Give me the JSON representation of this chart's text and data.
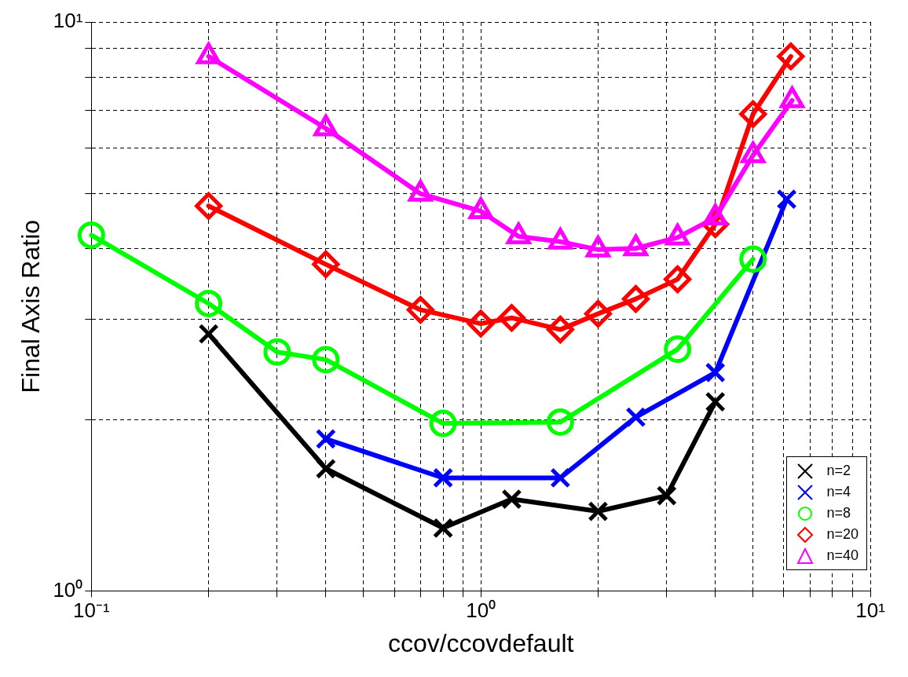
{
  "chart_data": {
    "type": "line",
    "xlabel": "ccov/ccovdefault",
    "ylabel": "Final Axis Ratio",
    "log": "xy",
    "grid": true,
    "legend": "bottom right",
    "line_style": "solid",
    "xlim": [
      0.1,
      10
    ],
    "ylim": [
      1,
      10
    ],
    "xticks": [
      {
        "value": 0.1,
        "label": "10⁻¹"
      },
      {
        "value": 0.2,
        "label": null
      },
      {
        "value": 0.3,
        "label": null
      },
      {
        "value": 0.4,
        "label": null
      },
      {
        "value": 0.5,
        "label": null
      },
      {
        "value": 0.6,
        "label": null
      },
      {
        "value": 0.7,
        "label": null
      },
      {
        "value": 0.8,
        "label": null
      },
      {
        "value": 0.9,
        "label": null
      },
      {
        "value": 1,
        "label": "10⁰"
      },
      {
        "value": 2,
        "label": null
      },
      {
        "value": 3,
        "label": null
      },
      {
        "value": 4,
        "label": null
      },
      {
        "value": 5,
        "label": null
      },
      {
        "value": 6,
        "label": null
      },
      {
        "value": 7,
        "label": null
      },
      {
        "value": 8,
        "label": null
      },
      {
        "value": 9,
        "label": null
      },
      {
        "value": 10,
        "label": "10¹"
      }
    ],
    "yticks": [
      {
        "value": 1,
        "label": "10⁰"
      },
      {
        "value": 2,
        "label": null
      },
      {
        "value": 3,
        "label": null
      },
      {
        "value": 4,
        "label": null
      },
      {
        "value": 5,
        "label": null
      },
      {
        "value": 6,
        "label": null
      },
      {
        "value": 7,
        "label": null
      },
      {
        "value": 8,
        "label": null
      },
      {
        "value": 9,
        "label": null
      },
      {
        "value": 10,
        "label": "10¹"
      }
    ],
    "series": [
      {
        "name": "n=2",
        "color": "#000000",
        "marker": "cross",
        "x": [
          0.2,
          0.4,
          0.8,
          1.2,
          2,
          3,
          4
        ],
        "values": [
          2.83,
          1.64,
          1.29,
          1.45,
          1.38,
          1.47,
          2.15
        ]
      },
      {
        "name": "n=4",
        "color": "#0000ff",
        "marker": "cross",
        "x": [
          0.4,
          0.8,
          1.6,
          2.5,
          4,
          6.1
        ],
        "values": [
          1.85,
          1.58,
          1.58,
          2.02,
          2.42,
          4.88
        ]
      },
      {
        "name": "n=8",
        "color": "#00ff00",
        "marker": "circle",
        "x": [
          0.1,
          0.2,
          0.3,
          0.4,
          0.8,
          1.6,
          3.2,
          5
        ],
        "values": [
          4.22,
          3.2,
          2.63,
          2.55,
          1.97,
          1.98,
          2.66,
          3.83
        ]
      },
      {
        "name": "n=20",
        "color": "#ff0000",
        "marker": "diamond",
        "x": [
          0.2,
          0.4,
          0.7,
          1,
          1.2,
          1.6,
          2,
          2.5,
          3.2,
          4,
          5,
          6.25
        ],
        "values": [
          4.75,
          3.75,
          3.12,
          2.95,
          3.02,
          2.88,
          3.07,
          3.26,
          3.53,
          4.41,
          6.89,
          8.7
        ]
      },
      {
        "name": "n=40",
        "color": "#ff00ff",
        "marker": "triangle",
        "x": [
          0.2,
          0.4,
          0.7,
          1,
          1.25,
          1.6,
          2,
          2.5,
          3.2,
          4,
          5,
          6.3
        ],
        "values": [
          8.7,
          6.5,
          4.99,
          4.65,
          4.2,
          4.11,
          3.98,
          4.0,
          4.18,
          4.53,
          5.83,
          7.28
        ]
      }
    ]
  }
}
